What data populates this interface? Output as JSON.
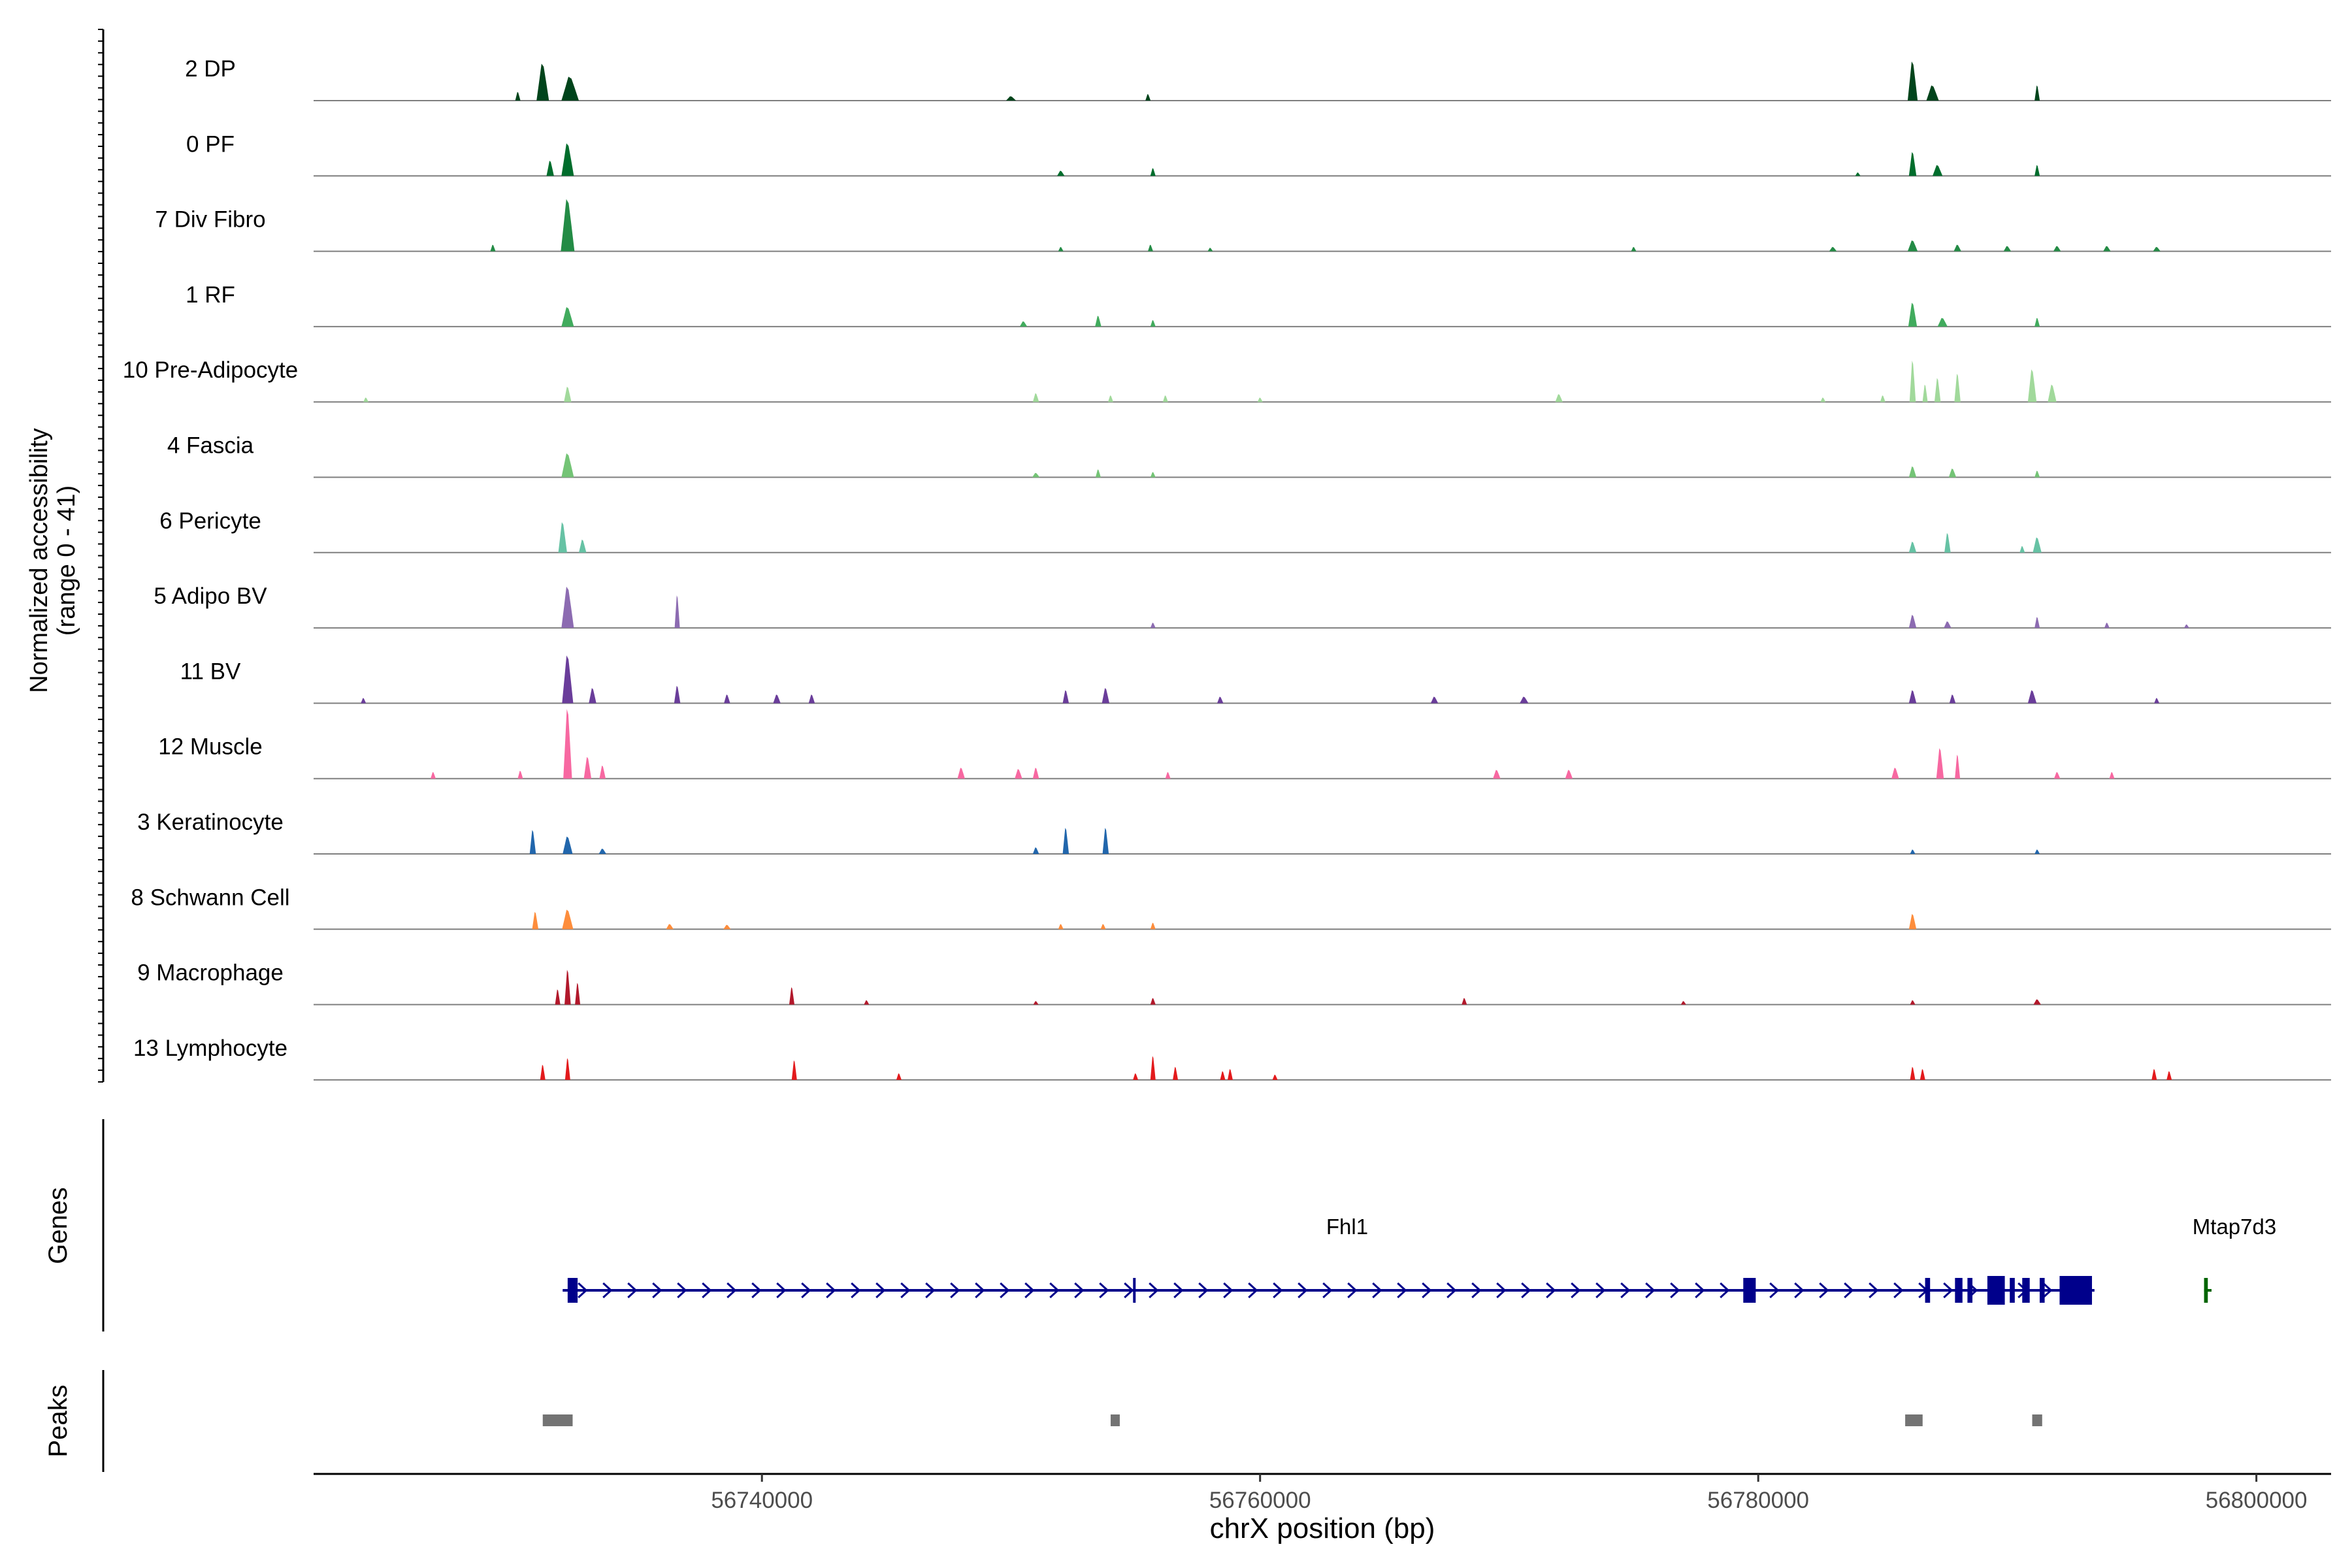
{
  "chart_data": {
    "type": "coverage",
    "title": "",
    "xlabel": "chrX position (bp)",
    "ylabel_line1": "Normalized accessibility",
    "ylabel_line2": "(range 0 - 41)",
    "y_range": [
      0,
      41
    ],
    "xlim": [
      56722000,
      56803000
    ],
    "x_ticks": [
      56740000,
      56760000,
      56780000,
      56800000
    ],
    "x_tick_labels": [
      "56740000",
      "56760000",
      "56780000",
      "56800000"
    ],
    "tracks": [
      {
        "label": "2 DP",
        "color": "#00441b",
        "peaks": [
          [
            56731200,
            0.85,
            500
          ],
          [
            56732300,
            0.55,
            700
          ],
          [
            56730200,
            0.2,
            200
          ],
          [
            56750000,
            0.1,
            400
          ],
          [
            56755500,
            0.15,
            150
          ],
          [
            56786200,
            0.9,
            400
          ],
          [
            56787000,
            0.35,
            500
          ],
          [
            56791200,
            0.35,
            200
          ]
        ]
      },
      {
        "label": "0 PF",
        "color": "#006d2c",
        "peaks": [
          [
            56732200,
            0.75,
            500
          ],
          [
            56731500,
            0.35,
            300
          ],
          [
            56752000,
            0.12,
            300
          ],
          [
            56755700,
            0.18,
            150
          ],
          [
            56786200,
            0.55,
            300
          ],
          [
            56787200,
            0.25,
            400
          ],
          [
            56791200,
            0.25,
            200
          ],
          [
            56784000,
            0.08,
            200
          ]
        ]
      },
      {
        "label": "7 Div Fibro",
        "color": "#238b45",
        "peaks": [
          [
            56732200,
            1.2,
            550
          ],
          [
            56729200,
            0.15,
            150
          ],
          [
            56752000,
            0.1,
            200
          ],
          [
            56755600,
            0.15,
            150
          ],
          [
            56758000,
            0.08,
            200
          ],
          [
            56775000,
            0.1,
            200
          ],
          [
            56786200,
            0.25,
            400
          ],
          [
            56788000,
            0.15,
            300
          ],
          [
            56792000,
            0.12,
            300
          ],
          [
            56794000,
            0.12,
            300
          ],
          [
            56796000,
            0.1,
            300
          ],
          [
            56783000,
            0.1,
            300
          ],
          [
            56790000,
            0.12,
            300
          ]
        ]
      },
      {
        "label": "1 RF",
        "color": "#41ab5d",
        "peaks": [
          [
            56732200,
            0.45,
            500
          ],
          [
            56750500,
            0.12,
            300
          ],
          [
            56753500,
            0.25,
            250
          ],
          [
            56755700,
            0.15,
            150
          ],
          [
            56786200,
            0.55,
            350
          ],
          [
            56787400,
            0.2,
            400
          ],
          [
            56791200,
            0.2,
            200
          ]
        ]
      },
      {
        "label": "10 Pre-Adipocyte",
        "color": "#a1d99b",
        "peaks": [
          [
            56732200,
            0.35,
            300
          ],
          [
            56724100,
            0.1,
            150
          ],
          [
            56751000,
            0.2,
            250
          ],
          [
            56754000,
            0.15,
            200
          ],
          [
            56756200,
            0.15,
            200
          ],
          [
            56760000,
            0.1,
            200
          ],
          [
            56772000,
            0.18,
            300
          ],
          [
            56786200,
            0.95,
            250
          ],
          [
            56787200,
            0.55,
            250
          ],
          [
            56788000,
            0.65,
            250
          ],
          [
            56791000,
            0.75,
            350
          ],
          [
            56791800,
            0.4,
            350
          ],
          [
            56785000,
            0.15,
            200
          ],
          [
            56782600,
            0.1,
            150
          ],
          [
            56786700,
            0.4,
            200
          ]
        ]
      },
      {
        "label": "4 Fascia",
        "color": "#74c476",
        "peaks": [
          [
            56732200,
            0.55,
            500
          ],
          [
            56751000,
            0.1,
            300
          ],
          [
            56753500,
            0.18,
            200
          ],
          [
            56755700,
            0.12,
            150
          ],
          [
            56786200,
            0.25,
            300
          ],
          [
            56787800,
            0.2,
            300
          ],
          [
            56791200,
            0.15,
            200
          ]
        ]
      },
      {
        "label": "6 Pericyte",
        "color": "#66c2a4",
        "peaks": [
          [
            56732000,
            0.7,
            350
          ],
          [
            56732800,
            0.3,
            300
          ],
          [
            56786200,
            0.25,
            300
          ],
          [
            56787600,
            0.45,
            250
          ],
          [
            56791200,
            0.35,
            350
          ],
          [
            56790600,
            0.15,
            200
          ]
        ]
      },
      {
        "label": "5 Adipo BV",
        "color": "#8c6bb1",
        "peaks": [
          [
            56732200,
            0.95,
            500
          ],
          [
            56736600,
            0.75,
            200
          ],
          [
            56755700,
            0.12,
            150
          ],
          [
            56786200,
            0.3,
            300
          ],
          [
            56787600,
            0.15,
            300
          ],
          [
            56791200,
            0.25,
            200
          ],
          [
            56794000,
            0.12,
            200
          ],
          [
            56797200,
            0.08,
            150
          ]
        ]
      },
      {
        "label": "11 BV",
        "color": "#6a3d9a",
        "peaks": [
          [
            56732200,
            1.1,
            450
          ],
          [
            56733200,
            0.35,
            300
          ],
          [
            56724000,
            0.12,
            200
          ],
          [
            56736600,
            0.4,
            250
          ],
          [
            56738600,
            0.2,
            250
          ],
          [
            56740600,
            0.2,
            300
          ],
          [
            56742000,
            0.2,
            250
          ],
          [
            56752200,
            0.3,
            250
          ],
          [
            56753800,
            0.35,
            300
          ],
          [
            56758400,
            0.15,
            250
          ],
          [
            56767000,
            0.15,
            300
          ],
          [
            56770600,
            0.15,
            350
          ],
          [
            56786200,
            0.3,
            300
          ],
          [
            56787800,
            0.2,
            250
          ],
          [
            56791000,
            0.3,
            350
          ],
          [
            56796000,
            0.12,
            200
          ]
        ]
      },
      {
        "label": "12 Muscle",
        "color": "#f768a1",
        "peaks": [
          [
            56732200,
            1.6,
            350
          ],
          [
            56733000,
            0.5,
            300
          ],
          [
            56733600,
            0.3,
            250
          ],
          [
            56726800,
            0.15,
            150
          ],
          [
            56730300,
            0.18,
            150
          ],
          [
            56748000,
            0.25,
            300
          ],
          [
            56750300,
            0.22,
            300
          ],
          [
            56751000,
            0.25,
            250
          ],
          [
            56756300,
            0.15,
            150
          ],
          [
            56769500,
            0.2,
            300
          ],
          [
            56772400,
            0.2,
            300
          ],
          [
            56785500,
            0.25,
            300
          ],
          [
            56787300,
            0.7,
            300
          ],
          [
            56788000,
            0.55,
            200
          ],
          [
            56792000,
            0.15,
            250
          ],
          [
            56794200,
            0.15,
            200
          ]
        ]
      },
      {
        "label": "3 Keratinocyte",
        "color": "#2166ac",
        "peaks": [
          [
            56730800,
            0.55,
            250
          ],
          [
            56732200,
            0.4,
            400
          ],
          [
            56733600,
            0.12,
            300
          ],
          [
            56752200,
            0.6,
            250
          ],
          [
            56753800,
            0.6,
            250
          ],
          [
            56751000,
            0.15,
            250
          ],
          [
            56786200,
            0.1,
            200
          ],
          [
            56791200,
            0.1,
            200
          ]
        ]
      },
      {
        "label": "8 Schwann Cell",
        "color": "#fd8d3c",
        "peaks": [
          [
            56730900,
            0.4,
            250
          ],
          [
            56732200,
            0.45,
            450
          ],
          [
            56736300,
            0.12,
            300
          ],
          [
            56738600,
            0.1,
            300
          ],
          [
            56752000,
            0.12,
            200
          ],
          [
            56753700,
            0.12,
            200
          ],
          [
            56755700,
            0.15,
            150
          ],
          [
            56786200,
            0.35,
            300
          ]
        ]
      },
      {
        "label": "9 Macrophage",
        "color": "#b2182b",
        "peaks": [
          [
            56732200,
            0.8,
            250
          ],
          [
            56732600,
            0.5,
            150
          ],
          [
            56731800,
            0.35,
            150
          ],
          [
            56741200,
            0.4,
            120
          ],
          [
            56744200,
            0.1,
            120
          ],
          [
            56755700,
            0.15,
            150
          ],
          [
            56768200,
            0.15,
            150
          ],
          [
            56751000,
            0.08,
            200
          ],
          [
            56777000,
            0.08,
            150
          ],
          [
            56786200,
            0.1,
            200
          ],
          [
            56791200,
            0.12,
            300
          ]
        ]
      },
      {
        "label": "13 Lymphocyte",
        "color": "#e31a1c",
        "peaks": [
          [
            56732200,
            0.5,
            120
          ],
          [
            56731200,
            0.35,
            100
          ],
          [
            56741300,
            0.45,
            150
          ],
          [
            56745500,
            0.15,
            150
          ],
          [
            56755700,
            0.55,
            120
          ],
          [
            56756600,
            0.3,
            120
          ],
          [
            56758500,
            0.2,
            150
          ],
          [
            56758800,
            0.25,
            150
          ],
          [
            56760600,
            0.12,
            100
          ],
          [
            56786200,
            0.3,
            150
          ],
          [
            56786600,
            0.25,
            120
          ],
          [
            56795900,
            0.25,
            150
          ],
          [
            56796500,
            0.2,
            120
          ],
          [
            56755000,
            0.15,
            120
          ]
        ]
      }
    ],
    "genes_label": "Genes",
    "genes": [
      {
        "name": "Fhl1",
        "color": "#00008b",
        "strand": "+",
        "start": 56732000,
        "end": 56793500,
        "exons": [
          [
            56732200,
            56732600
          ],
          [
            56754900,
            56755000
          ],
          [
            56779400,
            56779900
          ],
          [
            56786700,
            56786900
          ],
          [
            56787900,
            56788200
          ],
          [
            56788400,
            56788600
          ],
          [
            56789200,
            56789900
          ],
          [
            56790100,
            56790300
          ],
          [
            56790600,
            56790900
          ],
          [
            56791300,
            56791500
          ],
          [
            56792100,
            56793400
          ]
        ]
      },
      {
        "name": "Mtap7d3",
        "color": "#006400",
        "strand": "-",
        "start": 56797900,
        "end": 56798200,
        "exons": [
          [
            56797900,
            56798050
          ]
        ]
      }
    ],
    "peaks_label": "Peaks",
    "peaks_regions": [
      [
        56731200,
        56732400
      ],
      [
        56754000,
        56754300
      ],
      [
        56785900,
        56786600
      ],
      [
        56791000,
        56791400
      ]
    ]
  }
}
